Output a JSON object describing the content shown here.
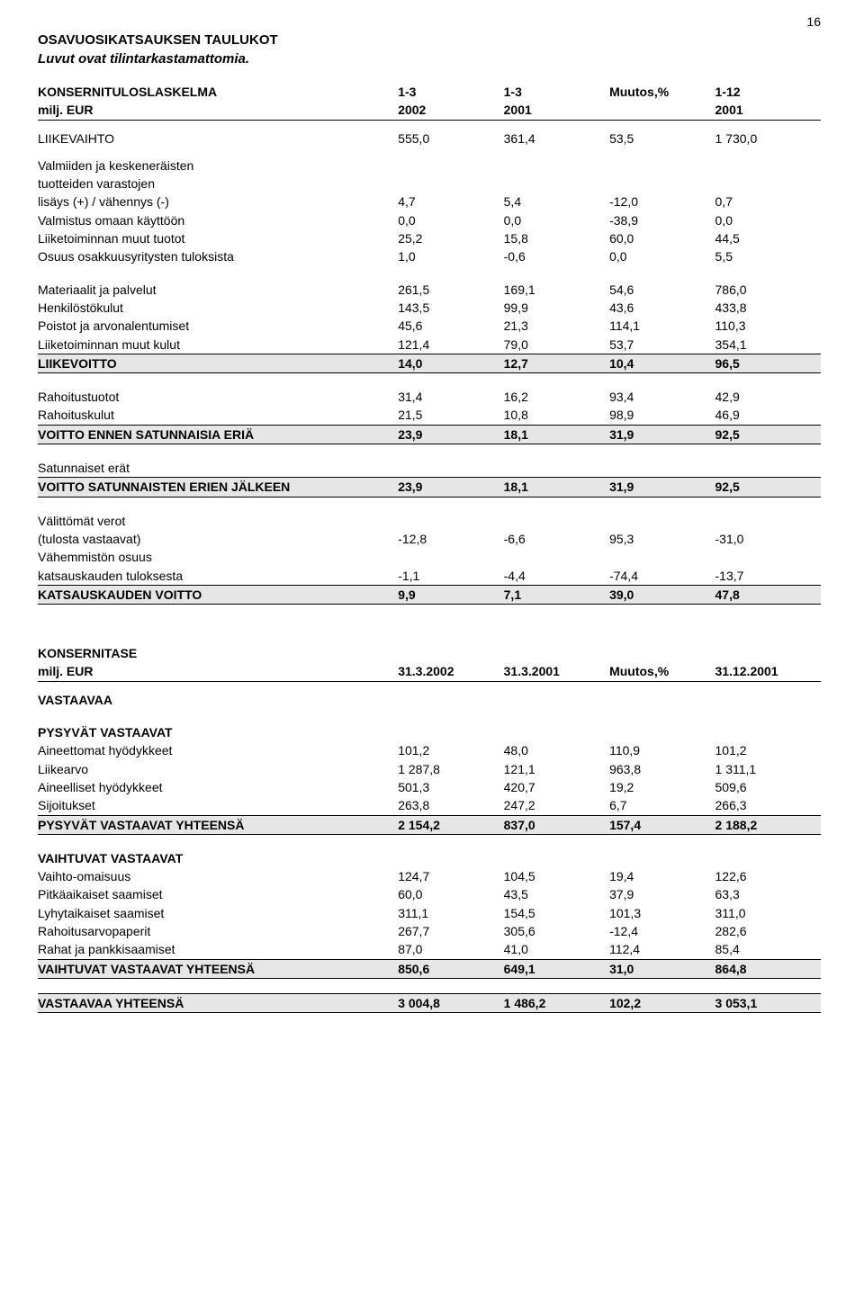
{
  "pageNumber": "16",
  "titles": {
    "main": "OSAVUOSIKATSAUKSEN TAULUKOT",
    "sub": "Luvut ovat tilintarkastamattomia."
  },
  "incomeHeader": {
    "label1": "KONSERNITULOSLASKELMA",
    "label2": "milj. EUR",
    "c1a": "1-3",
    "c1b": "2002",
    "c2a": "1-3",
    "c2b": "2001",
    "c3a": "Muutos,%",
    "c3b": "",
    "c4a": "1-12",
    "c4b": "2001"
  },
  "income": {
    "liikevaihto": {
      "label": "LIIKEVAIHTO",
      "v": [
        "555,0",
        "361,4",
        "53,5",
        "1 730,0"
      ]
    },
    "varasto_l1": "Valmiiden ja keskeneräisten",
    "varasto_l2": "tuotteiden varastojen",
    "varasto_row": {
      "label": "lisäys (+) / vähennys (-)",
      "v": [
        "4,7",
        "5,4",
        "-12,0",
        "0,7"
      ]
    },
    "valmistus": {
      "label": "Valmistus omaan käyttöön",
      "v": [
        "0,0",
        "0,0",
        "-38,9",
        "0,0"
      ]
    },
    "muut_tuotot": {
      "label": "Liiketoiminnan muut tuotot",
      "v": [
        "25,2",
        "15,8",
        "60,0",
        "44,5"
      ]
    },
    "osakkuus": {
      "label": "Osuus osakkuusyritysten tuloksista",
      "v": [
        "1,0",
        "-0,6",
        "0,0",
        "5,5"
      ]
    },
    "materiaalit": {
      "label": "Materiaalit ja palvelut",
      "v": [
        "261,5",
        "169,1",
        "54,6",
        "786,0"
      ]
    },
    "henkilosto": {
      "label": "Henkilöstökulut",
      "v": [
        "143,5",
        "99,9",
        "43,6",
        "433,8"
      ]
    },
    "poistot": {
      "label": "Poistot ja arvonalentumiset",
      "v": [
        "45,6",
        "21,3",
        "114,1",
        "110,3"
      ]
    },
    "muut_kulut": {
      "label": "Liiketoiminnan muut kulut",
      "v": [
        "121,4",
        "79,0",
        "53,7",
        "354,1"
      ]
    },
    "liikevoitto": {
      "label": "LIIKEVOITTO",
      "v": [
        "14,0",
        "12,7",
        "10,4",
        "96,5"
      ]
    },
    "rahoitustuotot": {
      "label": "Rahoitustuotot",
      "v": [
        "31,4",
        "16,2",
        "93,4",
        "42,9"
      ]
    },
    "rahoituskulut": {
      "label": "Rahoituskulut",
      "v": [
        "21,5",
        "10,8",
        "98,9",
        "46,9"
      ]
    },
    "voitto_ennen": {
      "label": "VOITTO ENNEN SATUNNAISIA ERIÄ",
      "v": [
        "23,9",
        "18,1",
        "31,9",
        "92,5"
      ]
    },
    "satunnaiset": "Satunnaiset erät",
    "voitto_satun": {
      "label": "VOITTO SATUNNAISTEN ERIEN JÄLKEEN",
      "v": [
        "23,9",
        "18,1",
        "31,9",
        "92,5"
      ]
    },
    "valittomat_l1": "Välittömät verot",
    "valittomat_row": {
      "label": "(tulosta vastaavat)",
      "v": [
        "-12,8",
        "-6,6",
        "95,3",
        "-31,0"
      ]
    },
    "vahemmisto_l1": "Vähemmistön osuus",
    "vahemmisto_row": {
      "label": "katsauskauden tuloksesta",
      "v": [
        "-1,1",
        "-4,4",
        "-74,4",
        "-13,7"
      ]
    },
    "katsauskauden": {
      "label": "KATSAUSKAUDEN VOITTO",
      "v": [
        "9,9",
        "7,1",
        "39,0",
        "47,8"
      ]
    }
  },
  "balanceHeader": {
    "label1": "KONSERNITASE",
    "label2": "milj. EUR",
    "c1": "31.3.2002",
    "c2": "31.3.2001",
    "c3": "Muutos,%",
    "c4": "31.12.2001"
  },
  "balance": {
    "vastaavaa": "VASTAAVAA",
    "pysyvat_h": "PYSYVÄT VASTAAVAT",
    "aineettomat": {
      "label": "Aineettomat hyödykkeet",
      "v": [
        "101,2",
        "48,0",
        "110,9",
        "101,2"
      ]
    },
    "liikearvo": {
      "label": "Liikearvo",
      "v": [
        "1 287,8",
        "121,1",
        "963,8",
        "1 311,1"
      ]
    },
    "aineelliset": {
      "label": "Aineelliset hyödykkeet",
      "v": [
        "501,3",
        "420,7",
        "19,2",
        "509,6"
      ]
    },
    "sijoitukset": {
      "label": "Sijoitukset",
      "v": [
        "263,8",
        "247,2",
        "6,7",
        "266,3"
      ]
    },
    "pysyvat_yht": {
      "label": "PYSYVÄT VASTAAVAT YHTEENSÄ",
      "v": [
        "2 154,2",
        "837,0",
        "157,4",
        "2 188,2"
      ]
    },
    "vaihtuvat_h": "VAIHTUVAT VASTAAVAT",
    "vaihto_omaisuus": {
      "label": "Vaihto-omaisuus",
      "v": [
        "124,7",
        "104,5",
        "19,4",
        "122,6"
      ]
    },
    "pitkaaikaiset": {
      "label": "Pitkäaikaiset saamiset",
      "v": [
        "60,0",
        "43,5",
        "37,9",
        "63,3"
      ]
    },
    "lyhytaikaiset": {
      "label": "Lyhytaikaiset saamiset",
      "v": [
        "311,1",
        "154,5",
        "101,3",
        "311,0"
      ]
    },
    "rahoitusarvopaperit": {
      "label": "Rahoitusarvopaperit",
      "v": [
        "267,7",
        "305,6",
        "-12,4",
        "282,6"
      ]
    },
    "rahat": {
      "label": "Rahat ja pankkisaamiset",
      "v": [
        "87,0",
        "41,0",
        "112,4",
        "85,4"
      ]
    },
    "vaihtuvat_yht": {
      "label": "VAIHTUVAT VASTAAVAT YHTEENSÄ",
      "v": [
        "850,6",
        "649,1",
        "31,0",
        "864,8"
      ]
    },
    "vastaavaa_yht": {
      "label": "VASTAAVAA YHTEENSÄ",
      "v": [
        "3 004,8",
        "1 486,2",
        "102,2",
        "3 053,1"
      ]
    }
  },
  "style": {
    "highlight_bg": "#e6e6e6",
    "rule_color": "#000000",
    "page_bg": "#ffffff",
    "font_size_pt": 14
  }
}
